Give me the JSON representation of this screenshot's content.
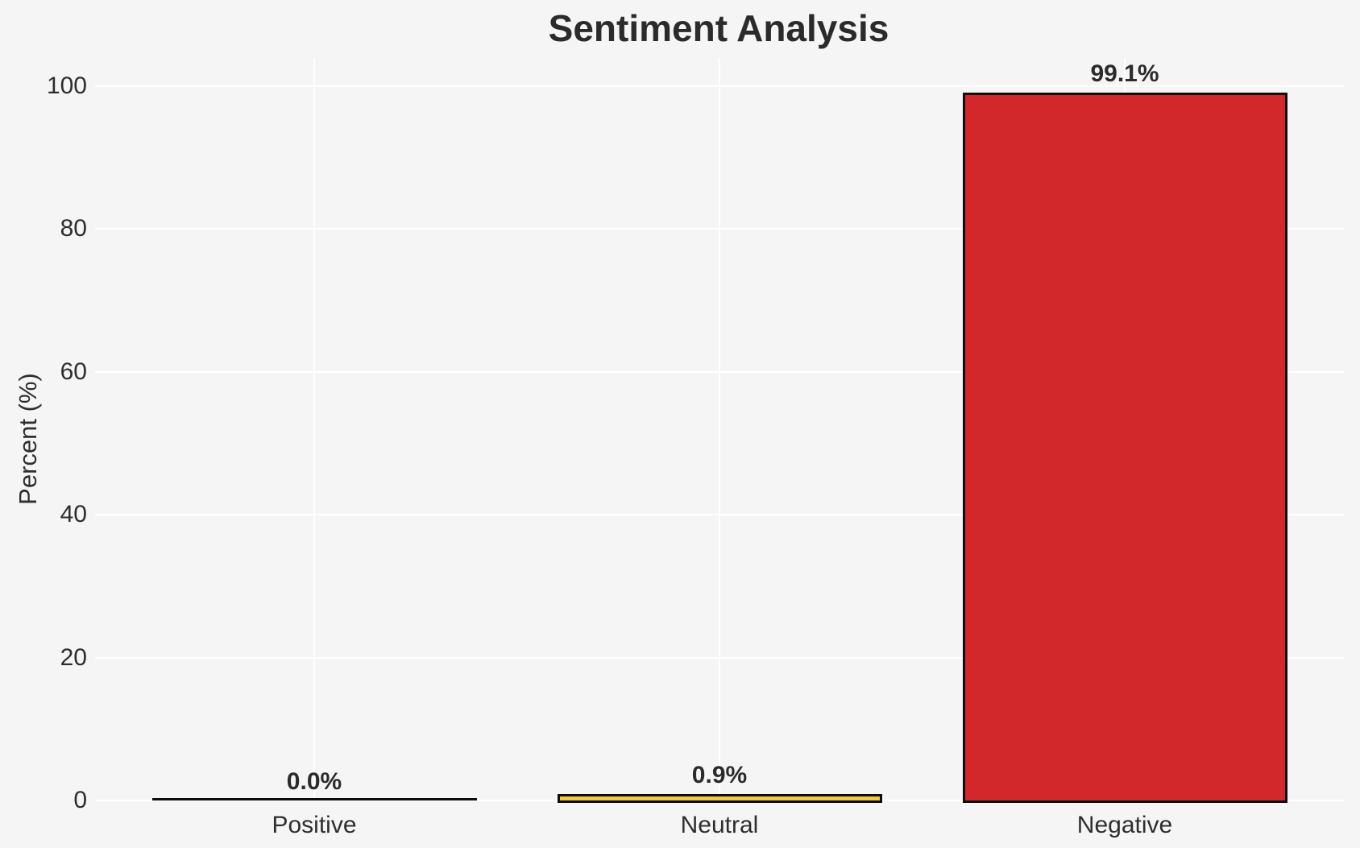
{
  "chart_data": {
    "type": "bar",
    "title": "Sentiment Analysis",
    "xlabel": "",
    "ylabel": "Percent (%)",
    "categories": [
      "Positive",
      "Neutral",
      "Negative"
    ],
    "values": [
      0.0,
      0.9,
      99.1
    ],
    "value_labels": [
      "0.0%",
      "0.9%",
      "99.1%"
    ],
    "bar_colors": [
      "#f5f5f6",
      "#f0c942",
      "#d2282b"
    ],
    "bar_edge_color": "#0e0e0e",
    "yticks": [
      0,
      20,
      40,
      60,
      80,
      100
    ],
    "ylim": [
      0,
      104
    ],
    "grid": true,
    "legend": "none",
    "background_color": "#f5f5f6",
    "gridline_color": "#ffffff",
    "text_color": "#2e2e2e"
  }
}
